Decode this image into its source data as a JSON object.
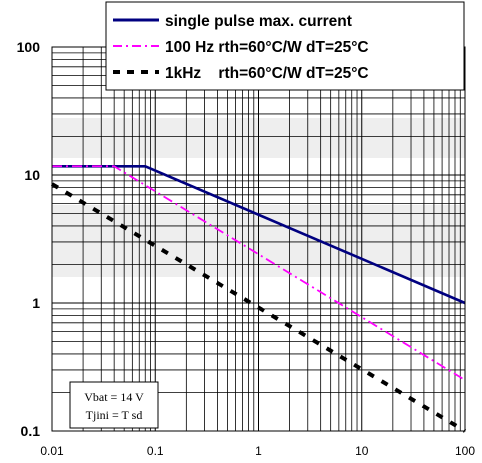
{
  "chart_data": {
    "type": "line",
    "x_scale": "log",
    "y_scale": "log",
    "xlim": [
      0.01,
      100
    ],
    "ylim": [
      0.1,
      100
    ],
    "x_ticks": [
      0.01,
      0.1,
      1,
      10,
      100
    ],
    "x_tick_labels": [
      "0.01",
      "0.1",
      "1",
      "10",
      "100"
    ],
    "y_ticks": [
      0.1,
      1,
      10,
      100
    ],
    "y_tick_labels": [
      "0.1",
      "1",
      "10",
      "100"
    ],
    "grid": true,
    "legend_position": "top",
    "series": [
      {
        "name": "single pulse max. current",
        "color": "#000080",
        "style": "solid",
        "x": [
          0.01,
          0.08,
          100
        ],
        "y": [
          11.7,
          11.7,
          1.0
        ]
      },
      {
        "name": "100 Hz rth=60°C/W dT=25°C",
        "color": "#ff00ff",
        "style": "dashdot",
        "x": [
          0.01,
          0.04,
          100
        ],
        "y": [
          11.7,
          11.7,
          0.25
        ]
      },
      {
        "name": "1kHz    rth=60°C/W dT=25°C",
        "color": "#000000",
        "style": "dashed",
        "x": [
          0.01,
          100
        ],
        "y": [
          8.5,
          0.1
        ]
      }
    ],
    "annotations": [
      "Vbat = 14 V",
      "Tjini = T sd"
    ]
  }
}
